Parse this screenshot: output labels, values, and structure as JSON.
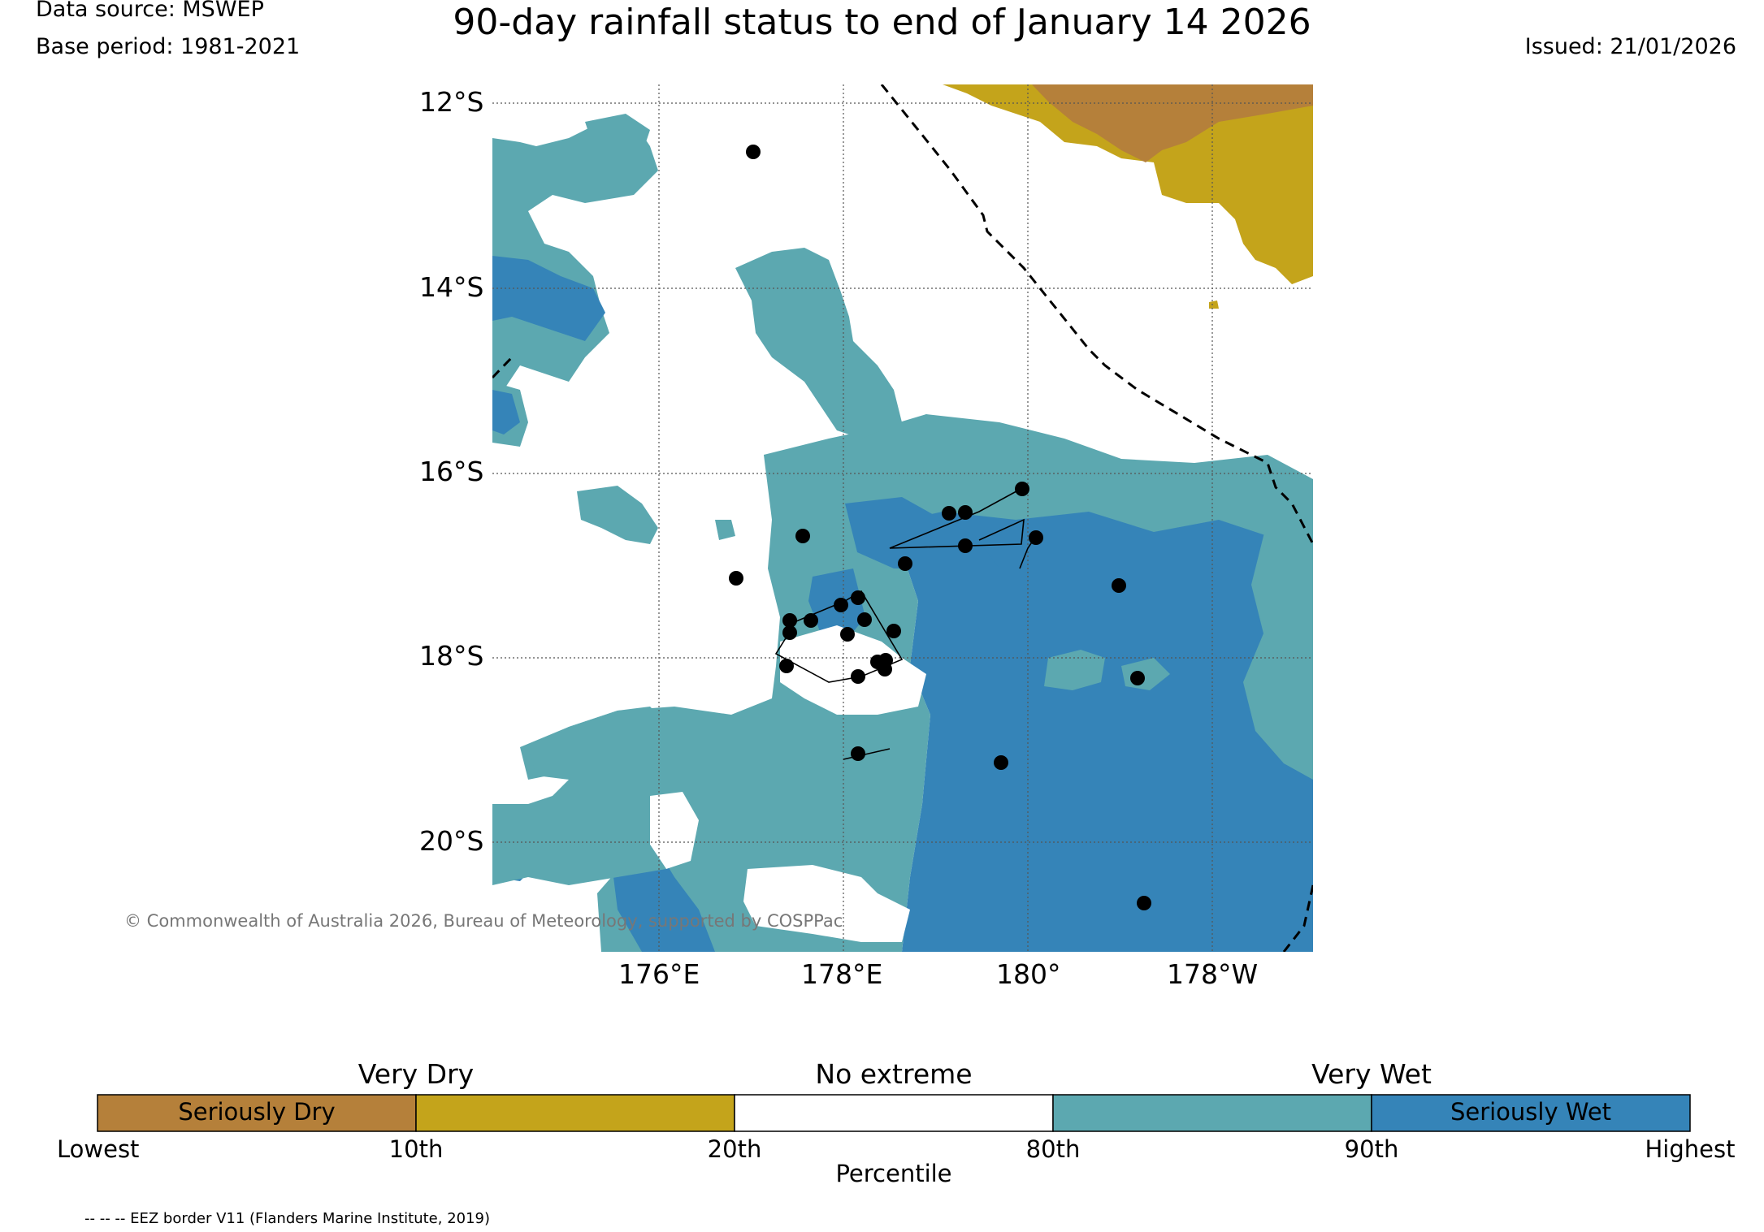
{
  "header": {
    "data_source": "Data source: MSWEP",
    "base_period": "Base period: 1981-2021",
    "title": "90-day rainfall status to end of January 14 2026",
    "issued": "Issued: 21/01/2026"
  },
  "map": {
    "lat_labels": [
      "12°S",
      "14°S",
      "16°S",
      "18°S",
      "20°S"
    ],
    "lon_labels": [
      "176°E",
      "178°E",
      "180°",
      "178°W"
    ],
    "copyright": "© Commonwealth of Australia 2026, Bureau of Meteorology, supported by COSPPac",
    "colors": {
      "seriously_dry": "#b5803a",
      "very_dry": "#c4a41b",
      "no_extreme": "#ffffff",
      "very_wet": "#5ca8b0",
      "seriously_wet": "#3584b8"
    }
  },
  "legend": {
    "group_labels": [
      "Very Dry",
      "No extreme",
      "Very Wet"
    ],
    "segments": [
      {
        "label": "Seriously Dry",
        "color": "#b5803a"
      },
      {
        "label": "",
        "color": "#c4a41b"
      },
      {
        "label": "",
        "color": "#ffffff"
      },
      {
        "label": "",
        "color": "#5ca8b0"
      },
      {
        "label": "Seriously Wet",
        "color": "#3584b8"
      }
    ],
    "ticks": [
      "Lowest",
      "10th",
      "20th",
      "80th",
      "90th",
      "Highest"
    ],
    "axis_label": "Percentile"
  },
  "footnote": "-- -- -- EEZ border V11 (Flanders Marine Institute, 2019)"
}
